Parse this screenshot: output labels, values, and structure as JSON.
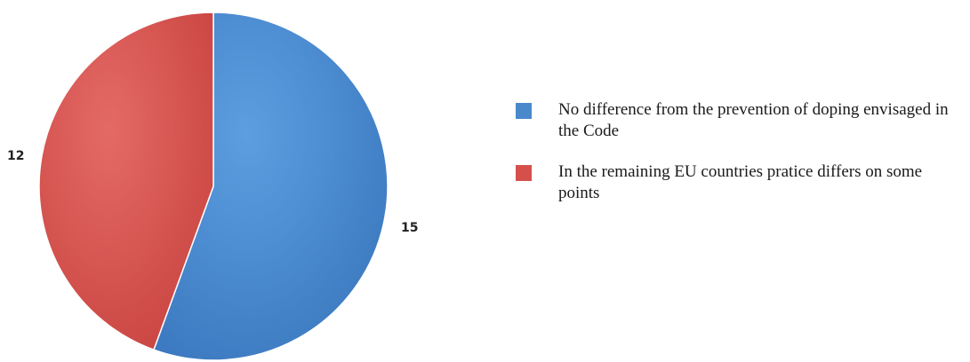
{
  "chart_data": {
    "type": "pie",
    "slices": [
      {
        "label": "No difference from the prevention of doping envisaged in the Code",
        "value": 15,
        "color": "#4a88cc",
        "data_label": "15"
      },
      {
        "label": "In the remaining EU countries pratice differs on some points",
        "value": 12,
        "color": "#d5504d",
        "data_label": "12"
      }
    ],
    "legend_position": "right"
  },
  "legend": {
    "items": [
      {
        "label": "No difference from the prevention of doping envisaged in the Code",
        "color": "#4a88cc"
      },
      {
        "label": "In the remaining EU countries pratice differs on some points",
        "color": "#d5504d"
      }
    ]
  }
}
